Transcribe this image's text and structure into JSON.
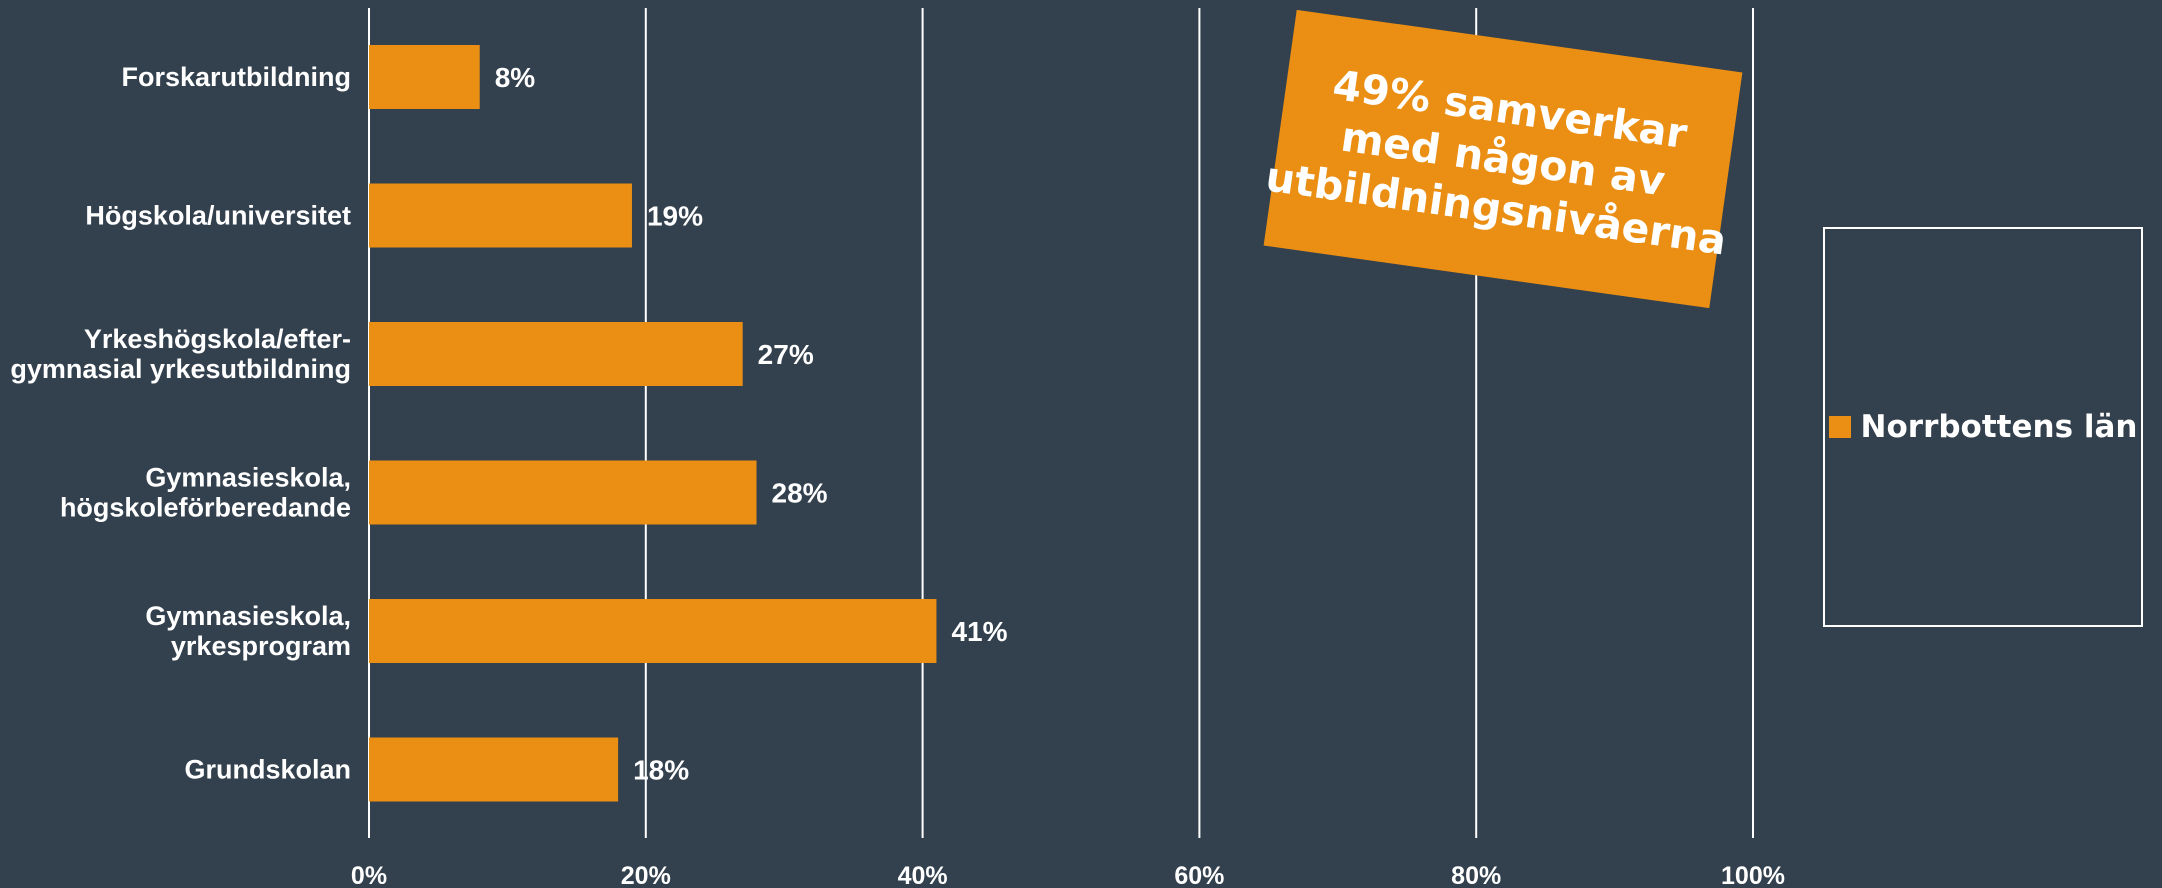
{
  "chart_data": {
    "type": "bar",
    "orientation": "horizontal",
    "categories": [
      [
        "Forskarutbildning"
      ],
      [
        "Högskola/universitet"
      ],
      [
        "Yrkeshögskola/efter-",
        "gymnasial yrkesutbildning"
      ],
      [
        "Gymnasieskola,",
        "högskoleförberedande"
      ],
      [
        "Gymnasieskola,",
        "yrkesprogram"
      ],
      [
        "Grundskolan"
      ]
    ],
    "values": [
      8,
      19,
      27,
      28,
      41,
      18
    ],
    "value_labels": [
      "8%",
      "19%",
      "27%",
      "28%",
      "41%",
      "18%"
    ],
    "xlim": [
      0,
      100
    ],
    "x_ticks": [
      0,
      20,
      40,
      60,
      80,
      100
    ],
    "x_tick_labels": [
      "0%",
      "20%",
      "40%",
      "60%",
      "80%",
      "100%"
    ],
    "grid": true,
    "series": [
      {
        "name": "Norrbottens län",
        "color": "#ea8f14",
        "values": [
          8,
          19,
          27,
          28,
          41,
          18
        ]
      }
    ],
    "legend_position": "right"
  },
  "callout": {
    "text": "49% samverkar\nmed någon av\nutbildningsnivåerna"
  },
  "legend": {
    "label": "Norrbottens län"
  },
  "colors": {
    "background": "#33404d",
    "bar": "#ea8f14",
    "grid": "#ffffff",
    "text": "#ffffff"
  }
}
